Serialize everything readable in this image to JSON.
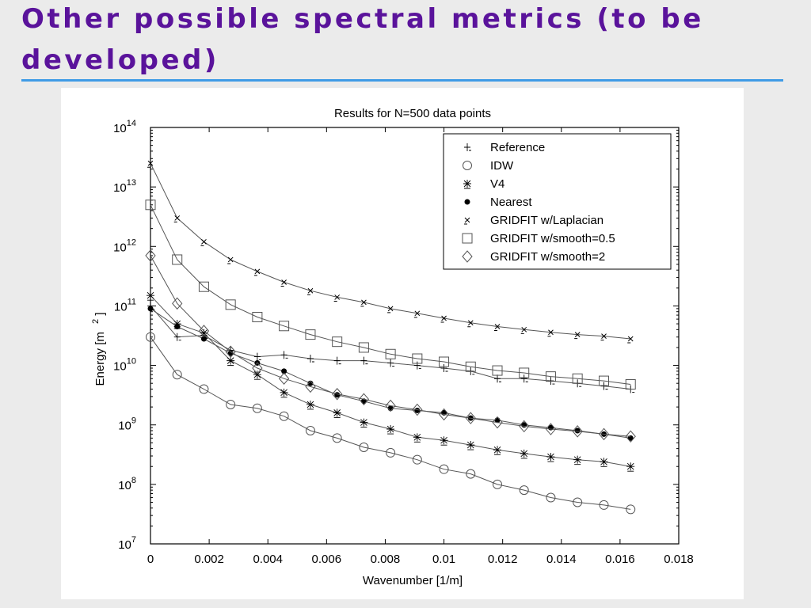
{
  "slide": {
    "title": "Other possible spectral metrics (to be developed)",
    "title_color": "#5a139b",
    "rule_color": "#3f9be6"
  },
  "chart_data": {
    "type": "line",
    "title": "Results for N=500 data points",
    "xlabel": "Wavenumber [1/m]",
    "ylabel_text": "Energy [m",
    "ylabel_superscript": "2",
    "ylabel_close": "]",
    "yscale": "log",
    "xlim": [
      0,
      0.018
    ],
    "ylim": [
      10000000,
      100000000000000
    ],
    "x_ticks": [
      0,
      0.002,
      0.004,
      0.006,
      0.008,
      0.01,
      0.012,
      0.014,
      0.016,
      0.018
    ],
    "x_tick_labels": [
      "0",
      "0.002",
      "0.004",
      "0.006",
      "0.008",
      "0.01",
      "0.012",
      "0.014",
      "0.016",
      "0.018"
    ],
    "y_ticks": [
      7,
      8,
      9,
      10,
      11,
      12,
      13,
      14
    ],
    "y_tick_base": "10",
    "y_tick_exponents": [
      "7",
      "8",
      "9",
      "10",
      "11",
      "12",
      "13",
      "14"
    ],
    "grid": false,
    "legend_position": "top-right",
    "x": [
      0.0,
      0.00091,
      0.00182,
      0.00273,
      0.00364,
      0.00455,
      0.00545,
      0.00636,
      0.00727,
      0.00818,
      0.00909,
      0.01,
      0.01091,
      0.01182,
      0.01273,
      0.01364,
      0.01455,
      0.01545,
      0.01636
    ],
    "series": [
      {
        "name": "Reference",
        "marker": "tick-cross",
        "values": [
          100000000000,
          30000000000,
          32000000000,
          18000000000,
          14000000000,
          15000000000,
          13000000000,
          12000000000,
          12000000000,
          11000000000,
          10000000000,
          9000000000,
          8000000000,
          6000000000,
          6000000000,
          5500000000,
          5000000000,
          4500000000,
          4000000000
        ]
      },
      {
        "name": "IDW",
        "marker": "circle",
        "values": [
          30000000000,
          7000000000,
          4000000000,
          2200000000,
          1900000000,
          1400000000,
          800000000,
          600000000,
          420000000,
          340000000,
          260000000,
          180000000,
          150000000,
          100000000,
          80000000,
          60000000,
          50000000,
          45000000,
          38000000
        ]
      },
      {
        "name": "V4",
        "marker": "asterisk",
        "values": [
          150000000000,
          50000000000,
          35000000000,
          12000000000,
          7000000000,
          3500000000,
          2200000000,
          1600000000,
          1100000000,
          850000000,
          620000000,
          550000000,
          460000000,
          380000000,
          330000000,
          290000000,
          260000000,
          240000000,
          200000000
        ]
      },
      {
        "name": "Nearest",
        "marker": "dot",
        "values": [
          90000000000,
          45000000000,
          28000000000,
          16000000000,
          11000000000,
          8000000000,
          5000000000,
          3200000000,
          2500000000,
          1900000000,
          1750000000,
          1600000000,
          1300000000,
          1200000000,
          1000000000,
          900000000,
          800000000,
          700000000,
          600000000
        ]
      },
      {
        "name": "GRIDFIT w/Laplacian",
        "marker": "x",
        "values": [
          25000000000000,
          3000000000000,
          1200000000000,
          600000000000,
          380000000000,
          250000000000,
          180000000000,
          140000000000,
          115000000000,
          90000000000,
          75000000000,
          62000000000,
          52000000000,
          45000000000,
          40000000000,
          36000000000,
          33000000000,
          31000000000,
          28000000000
        ]
      },
      {
        "name": "GRIDFIT w/smooth=0.5",
        "marker": "square",
        "values": [
          5000000000000,
          600000000000,
          210000000000,
          105000000000,
          65000000000,
          46000000000,
          33000000000,
          25000000000,
          20000000000,
          15500000000,
          13000000000,
          11500000000,
          9500000000,
          8200000000,
          7500000000,
          6500000000,
          6000000000,
          5500000000,
          4800000000
        ]
      },
      {
        "name": "GRIDFIT w/smooth=2",
        "marker": "diamond",
        "values": [
          700000000000,
          110000000000,
          38000000000,
          17000000000,
          9000000000,
          6000000000,
          4400000000,
          3300000000,
          2700000000,
          2100000000,
          1800000000,
          1500000000,
          1300000000,
          1100000000,
          950000000,
          850000000,
          780000000,
          700000000,
          640000000
        ]
      }
    ]
  }
}
